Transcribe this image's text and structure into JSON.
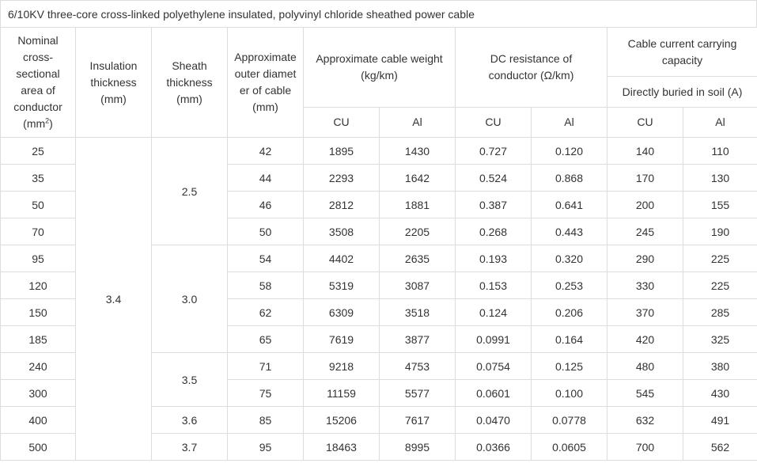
{
  "title": "6/10KV three-core cross-linked polyethylene insulated, polyvinyl chloride sheathed power cable",
  "headers": {
    "nominal_area": "Nominal cross-sectional area of conductor",
    "nominal_area_unit_base": "(mm",
    "nominal_area_unit_sup": "2",
    "nominal_area_unit_end": ")",
    "insulation": "Insulation thickness (mm)",
    "sheath": "Sheath thickness (mm)",
    "outer_diameter": "Approximate outer diameter of cable (mm)",
    "weight": "Approximate cable weight (kg/km)",
    "dc_resistance": "DC resistance of conductor (Ω/km)",
    "current_capacity": "Cable current carrying capacity",
    "buried": "Directly buried in soil (A)",
    "cu": "CU",
    "al": "Al"
  },
  "insulation_value": "3.4",
  "sheath_groups": [
    "2.5",
    "3.0",
    "3.5",
    "3.6",
    "3.7"
  ],
  "rows": [
    {
      "area": "25",
      "diameter": "42",
      "weight_cu": "1895",
      "weight_al": "1430",
      "res_cu": "0.727",
      "res_al": "0.120",
      "cap_cu": "140",
      "cap_al": "110"
    },
    {
      "area": "35",
      "diameter": "44",
      "weight_cu": "2293",
      "weight_al": "1642",
      "res_cu": "0.524",
      "res_al": "0.868",
      "cap_cu": "170",
      "cap_al": "130"
    },
    {
      "area": "50",
      "diameter": "46",
      "weight_cu": "2812",
      "weight_al": "1881",
      "res_cu": "0.387",
      "res_al": "0.641",
      "cap_cu": "200",
      "cap_al": "155"
    },
    {
      "area": "70",
      "diameter": "50",
      "weight_cu": "3508",
      "weight_al": "2205",
      "res_cu": "0.268",
      "res_al": "0.443",
      "cap_cu": "245",
      "cap_al": "190"
    },
    {
      "area": "95",
      "diameter": "54",
      "weight_cu": "4402",
      "weight_al": "2635",
      "res_cu": "0.193",
      "res_al": "0.320",
      "cap_cu": "290",
      "cap_al": "225"
    },
    {
      "area": "120",
      "diameter": "58",
      "weight_cu": "5319",
      "weight_al": "3087",
      "res_cu": "0.153",
      "res_al": "0.253",
      "cap_cu": "330",
      "cap_al": "225"
    },
    {
      "area": "150",
      "diameter": "62",
      "weight_cu": "6309",
      "weight_al": "3518",
      "res_cu": "0.124",
      "res_al": "0.206",
      "cap_cu": "370",
      "cap_al": "285"
    },
    {
      "area": "185",
      "diameter": "65",
      "weight_cu": "7619",
      "weight_al": "3877",
      "res_cu": "0.0991",
      "res_al": "0.164",
      "cap_cu": "420",
      "cap_al": "325"
    },
    {
      "area": "240",
      "diameter": "71",
      "weight_cu": "9218",
      "weight_al": "4753",
      "res_cu": "0.0754",
      "res_al": "0.125",
      "cap_cu": "480",
      "cap_al": "380"
    },
    {
      "area": "300",
      "diameter": "75",
      "weight_cu": "11159",
      "weight_al": "5577",
      "res_cu": "0.0601",
      "res_al": "0.100",
      "cap_cu": "545",
      "cap_al": "430"
    },
    {
      "area": "400",
      "diameter": "85",
      "weight_cu": "15206",
      "weight_al": "7617",
      "res_cu": "0.0470",
      "res_al": "0.0778",
      "cap_cu": "632",
      "cap_al": "491"
    },
    {
      "area": "500",
      "diameter": "95",
      "weight_cu": "18463",
      "weight_al": "8995",
      "res_cu": "0.0366",
      "res_al": "0.0605",
      "cap_cu": "700",
      "cap_al": "562"
    }
  ]
}
